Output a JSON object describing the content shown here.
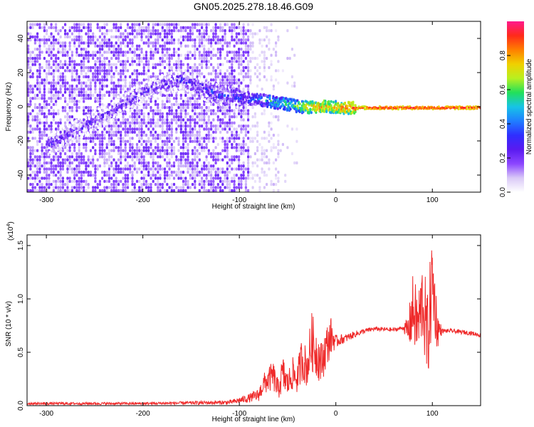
{
  "title": "GN05.2025.278.18.46.G09",
  "colors": {
    "snr_line": "#ef2b2b",
    "colormap": [
      "#ffffff",
      "#d9c9f7",
      "#8b45ff",
      "#5a1bf0",
      "#2f2fff",
      "#1f7fff",
      "#17c4e6",
      "#22e05a",
      "#b8f020",
      "#f0d000",
      "#ff7f00",
      "#ff2a1a",
      "#ff1a8c"
    ]
  },
  "chart_data": [
    {
      "type": "heatmap",
      "xlabel": "Height of straight line (km)",
      "ylabel": "Frequency (Hz)",
      "xlim": [
        -320,
        150
      ],
      "ylim": [
        -50,
        50
      ],
      "xticks": [
        -300,
        -200,
        -100,
        0,
        100
      ],
      "yticks": [
        -40,
        -20,
        0,
        20,
        40
      ],
      "colorbar": {
        "label": "Normalized spectral amplitude",
        "range": [
          0,
          1
        ],
        "ticks": [
          "0.0",
          "0.2",
          "0.4",
          "0.6",
          "0.8"
        ]
      },
      "ridge": {
        "x": [
          -300,
          -280,
          -260,
          -240,
          -220,
          -200,
          -180,
          -160,
          -140,
          -120,
          -100,
          -90,
          -80,
          -70,
          -60,
          -50,
          -40,
          -30,
          -20,
          -10,
          0,
          10,
          20,
          40,
          60,
          80,
          100,
          120,
          150
        ],
        "y": [
          -22,
          -16,
          -10,
          -4,
          3,
          9,
          14,
          17,
          11,
          8,
          6,
          5,
          5,
          4,
          3,
          2,
          1,
          0.5,
          0.5,
          1,
          0.5,
          0.2,
          0,
          0,
          0,
          0,
          0,
          0,
          0
        ],
        "amplitude": [
          0.22,
          0.22,
          0.2,
          0.2,
          0.2,
          0.2,
          0.2,
          0.22,
          0.28,
          0.3,
          0.32,
          0.36,
          0.42,
          0.5,
          0.55,
          0.58,
          0.62,
          0.72,
          0.78,
          0.78,
          0.8,
          0.82,
          0.88,
          0.95,
          0.95,
          0.95,
          0.95,
          0.95,
          0.95
        ]
      }
    },
    {
      "type": "line",
      "xlabel": "Height of straight line (km)",
      "ylabel": "SNR (10 * v/v)",
      "yscale_label": "(x10",
      "yscale_exp": "4",
      "yscale_close": ")",
      "xlim": [
        -320,
        150
      ],
      "ylim": [
        0,
        1.6
      ],
      "xticks": [
        -300,
        -200,
        -100,
        0,
        100
      ],
      "yticks": [
        "0.0",
        "0.5",
        "1.0",
        "1.5"
      ],
      "series": [
        {
          "x": [
            -320,
            -200,
            -110,
            -100,
            -90,
            -80,
            -75,
            -65,
            -60,
            -55,
            -50,
            -45,
            -40,
            -35,
            -30,
            -25,
            -20,
            -15,
            -10,
            -5,
            0,
            5,
            10,
            20,
            30,
            40,
            60,
            70,
            75,
            80,
            85,
            90,
            95,
            100,
            105,
            110,
            120,
            140,
            150
          ],
          "y": [
            0.02,
            0.02,
            0.03,
            0.05,
            0.07,
            0.1,
            0.2,
            0.28,
            0.15,
            0.3,
            0.2,
            0.3,
            0.25,
            0.45,
            0.35,
            0.6,
            0.5,
            0.4,
            0.55,
            0.65,
            0.6,
            0.62,
            0.63,
            0.67,
            0.7,
            0.72,
            0.71,
            0.73,
            0.7,
            0.9,
            0.75,
            1.0,
            0.6,
            1.2,
            0.72,
            0.7,
            0.7,
            0.68,
            0.66
          ],
          "noise": [
            0.012,
            0.012,
            0.02,
            0.03,
            0.04,
            0.06,
            0.1,
            0.14,
            0.1,
            0.18,
            0.12,
            0.16,
            0.14,
            0.22,
            0.18,
            0.28,
            0.24,
            0.2,
            0.2,
            0.18,
            0.06,
            0.05,
            0.04,
            0.03,
            0.025,
            0.02,
            0.02,
            0.02,
            0.15,
            0.35,
            0.3,
            0.4,
            0.45,
            0.45,
            0.2,
            0.02,
            0.02,
            0.02,
            0.02
          ]
        }
      ]
    }
  ]
}
